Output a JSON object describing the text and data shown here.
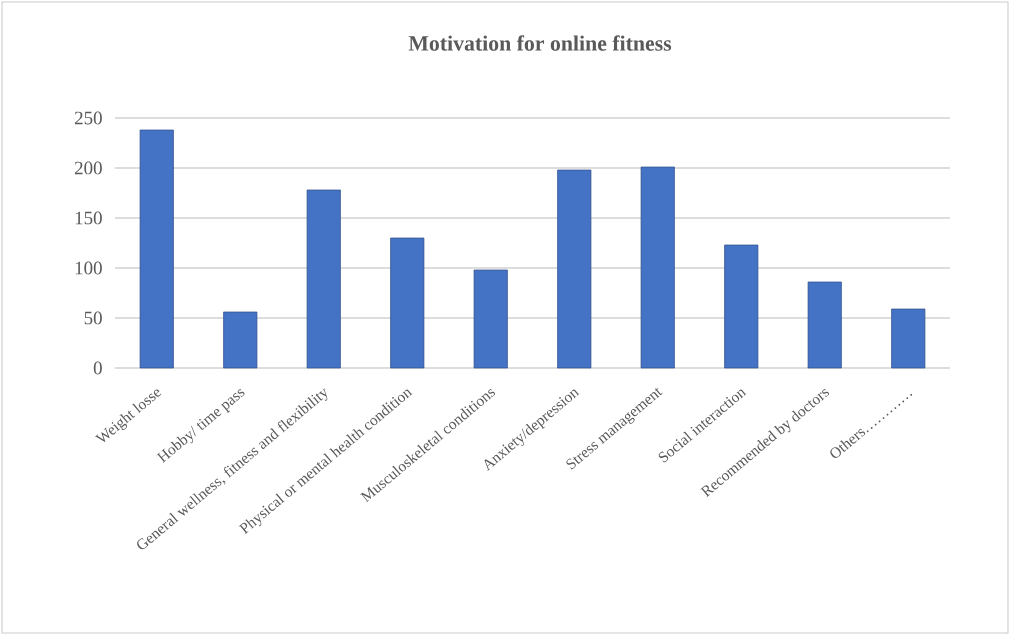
{
  "chart_data": {
    "type": "bar",
    "title": "Motivation for online fitness",
    "categories": [
      "Weight losse",
      "Hobby/ time pass",
      "General wellness, fitness and flexibility",
      "Physical or mental health condition",
      "Musculoskeletal conditions",
      "Anxiety/depression",
      "Stress management",
      "Social interaction",
      "Recommended by doctors",
      "Others…………"
    ],
    "values": [
      238,
      56,
      178,
      130,
      98,
      198,
      201,
      123,
      86,
      59
    ],
    "color": "#4472c4",
    "ylim": [
      0,
      250
    ],
    "yticks": [
      0,
      50,
      100,
      150,
      200,
      250
    ],
    "grid": "y"
  }
}
